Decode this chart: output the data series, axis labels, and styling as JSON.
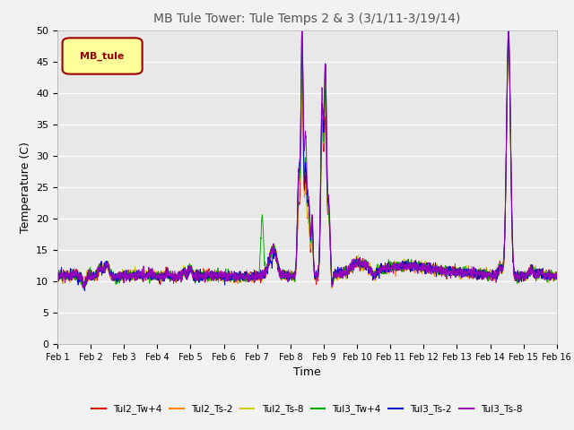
{
  "title": "MB Tule Tower: Tule Temps 2 & 3 (3/1/11-3/19/14)",
  "xlabel": "Time",
  "ylabel": "Temperature (C)",
  "ylim": [
    0,
    50
  ],
  "yticks": [
    0,
    5,
    10,
    15,
    20,
    25,
    30,
    35,
    40,
    45,
    50
  ],
  "legend_label": "MB_tule",
  "legend_box_color": "#ffff99",
  "legend_box_border": "#990000",
  "plot_bg": "#e8e8e8",
  "fig_bg": "#f2f2f2",
  "series": [
    {
      "label": "Tul2_Tw+4",
      "color": "#dd0000"
    },
    {
      "label": "Tul2_Ts-2",
      "color": "#ff8800"
    },
    {
      "label": "Tul2_Ts-8",
      "color": "#cccc00"
    },
    {
      "label": "Tul3_Tw+4",
      "color": "#00aa00"
    },
    {
      "label": "Tul3_Ts-2",
      "color": "#0000cc"
    },
    {
      "label": "Tul3_Ts-8",
      "color": "#9900bb"
    }
  ],
  "xtick_labels": [
    "Feb 1",
    "Feb 2",
    "Feb 3",
    "Feb 4",
    "Feb 5",
    "Feb 6",
    "Feb 7",
    "Feb 8",
    "Feb 9",
    "Feb 10",
    "Feb 11",
    "Feb 12",
    "Feb 13",
    "Feb 14",
    "Feb 15",
    "Feb 16"
  ],
  "n_days": 16
}
